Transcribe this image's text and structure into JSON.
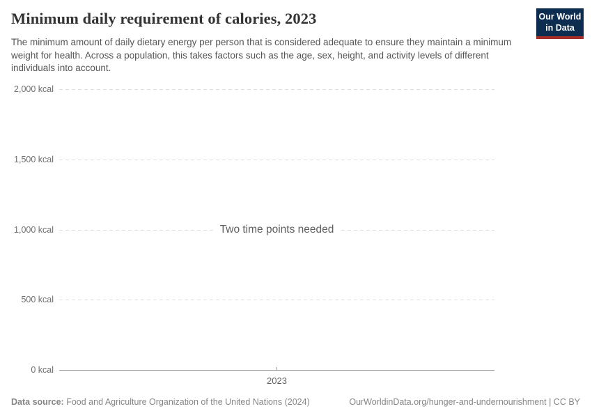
{
  "header": {
    "title": "Minimum daily requirement of calories, 2023",
    "subtitle": "The minimum amount of daily dietary energy per person that is considered adequate to ensure they maintain a minimum weight for health. Across a population, this takes factors such as the age, sex, height, and activity levels of different individuals into account.",
    "logo": {
      "line1": "Our World",
      "line2": "in Data",
      "bg_color": "#0D2D50",
      "accent_color": "#A52D28"
    }
  },
  "chart_data": {
    "type": "line",
    "title": "Minimum daily requirement of calories, 2023",
    "series": [],
    "empty_state_message": "Two time points needed",
    "x_ticks": [
      "2023"
    ],
    "y_ticks": [
      {
        "value": 0,
        "label": "0 kcal"
      },
      {
        "value": 500,
        "label": "500 kcal"
      },
      {
        "value": 1000,
        "label": "1,000 kcal"
      },
      {
        "value": 1500,
        "label": "1,500 kcal"
      },
      {
        "value": 2000,
        "label": "2,000 kcal"
      }
    ],
    "ylim": [
      0,
      2000
    ],
    "xlabel": "",
    "ylabel": "",
    "grid": "horizontal-dashed",
    "legend": "none",
    "grid_color": "#DEDEDE",
    "axis_color": "#9A9A9A"
  },
  "footer": {
    "datasource_label": "Data source:",
    "datasource_value": "Food and Agriculture Organization of the United Nations (2024)",
    "attribution": "OurWorldinData.org/hunger-and-undernourishment | CC BY"
  }
}
